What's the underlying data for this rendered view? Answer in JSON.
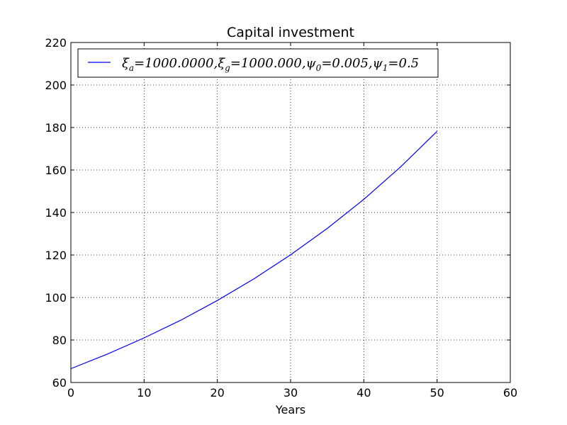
{
  "chart_data": {
    "type": "line",
    "title": "Capital investment",
    "xlabel": "Years",
    "ylabel": "",
    "xlim": [
      0,
      60
    ],
    "ylim": [
      60,
      220
    ],
    "xticks": [
      0,
      10,
      20,
      30,
      40,
      50,
      60
    ],
    "yticks": [
      60,
      80,
      100,
      120,
      140,
      160,
      180,
      200,
      220
    ],
    "grid": true,
    "legend_position": "top-left",
    "series": [
      {
        "name": "ξa = 1000.0000, ξg = 1000.000, ψ0 = 0.005, ψ1 = 0.5",
        "color": "#0000ff",
        "x": [
          0,
          5,
          10,
          15,
          20,
          25,
          30,
          35,
          40,
          45,
          50
        ],
        "y": [
          66.5,
          73.4,
          81.0,
          89.3,
          98.6,
          108.8,
          120.1,
          132.5,
          146.2,
          161.4,
          178.2
        ]
      }
    ]
  }
}
